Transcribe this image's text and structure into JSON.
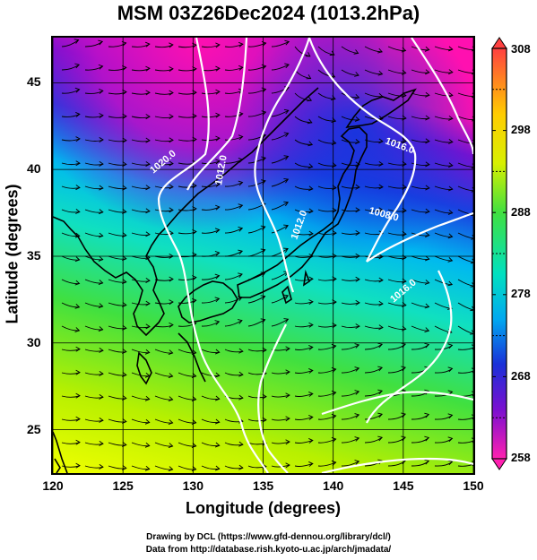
{
  "title": "MSM 03Z26Dec2024 (1013.2hPa)",
  "axes": {
    "xlabel": "Longitude (degrees)",
    "ylabel": "Latitude  (degrees)",
    "xticks": [
      "120",
      "125",
      "130",
      "135",
      "140",
      "145",
      "150"
    ],
    "yticks": [
      "25",
      "30",
      "35",
      "40",
      "45"
    ],
    "xlim": [
      120,
      150
    ],
    "ylim": [
      22.5,
      47.6
    ]
  },
  "colorbar": {
    "labels": [
      "308",
      "298",
      "288",
      "278",
      "268",
      "258"
    ],
    "range": [
      258,
      308
    ],
    "colors": [
      "#ff4040",
      "#ffcc00",
      "#8fe500",
      "#28e080",
      "#00d8e0",
      "#0050e0",
      "#6a00c8",
      "#ff20a0"
    ]
  },
  "contour_labels": [
    "1020.0",
    "1012.0",
    "1016.0",
    "1008.0",
    "1012.0",
    "1016.0"
  ],
  "credits": {
    "line1": "Drawing by DCL (https://www.gfd-dennou.org/library/dcl/)",
    "line2": "Data from http://database.rish.kyoto-u.ac.jp/arch/jmadata/"
  }
}
